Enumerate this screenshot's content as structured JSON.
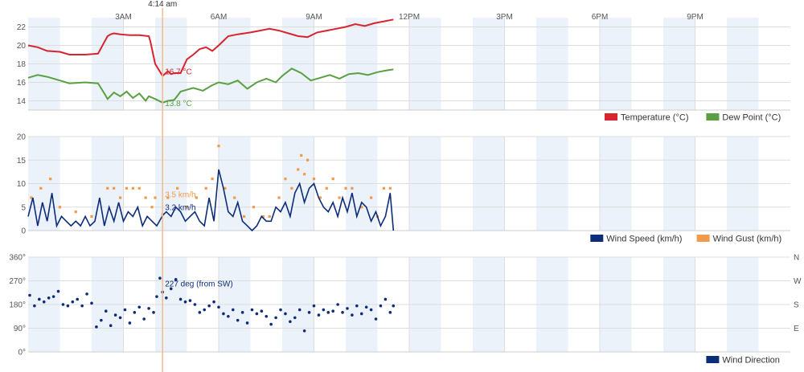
{
  "colors": {
    "temperature": "#d7242f",
    "dew_point": "#5aa042",
    "wind_speed": "#0d2d7a",
    "wind_gust": "#f29a4c",
    "wind_direction": "#0d2d7a",
    "crosshair": "#f5b98a",
    "band": "#ebf2fa",
    "grid": "#dddddd"
  },
  "crosshair": {
    "time_label": "4:14 am",
    "hour": 4.233,
    "temperature_label": "16.7 °C",
    "dew_point_label": "13.8 °C",
    "wind_gust_label": "3.5 km/h",
    "wind_speed_label": "3.2 km/h",
    "wind_direction_label": "227 deg (from SW)"
  },
  "chart_data": [
    {
      "type": "line",
      "x_axis": {
        "min": 0,
        "max": 24,
        "unit": "hours",
        "tick_values": [
          3,
          6,
          9,
          12,
          15,
          18,
          21
        ],
        "tick_labels": [
          "3AM",
          "6AM",
          "9AM",
          "12PM",
          "3PM",
          "6PM",
          "9PM"
        ]
      },
      "ylim": [
        13,
        23
      ],
      "y_ticks": [
        14,
        16,
        18,
        20,
        22
      ],
      "legend": {
        "placement": "bottom-right"
      },
      "series": [
        {
          "name": "Temperature (°C)",
          "x": [
            0,
            0.3,
            0.6,
            1.0,
            1.3,
            1.8,
            2.2,
            2.5,
            2.6,
            2.7,
            2.9,
            3.2,
            3.5,
            3.8,
            3.85,
            4.0,
            4.233,
            4.4,
            4.5,
            4.6,
            4.8,
            5.0,
            5.2,
            5.4,
            5.6,
            5.8,
            6.0,
            6.3,
            6.6,
            7.0,
            7.3,
            7.6,
            7.9,
            8.2,
            8.5,
            8.8,
            9.1,
            9.4,
            9.7,
            10.0,
            10.3,
            10.6,
            10.9,
            11.2,
            11.5
          ],
          "values": [
            20.0,
            19.8,
            19.4,
            19.3,
            19.0,
            19.0,
            19.1,
            21.0,
            21.2,
            21.3,
            21.2,
            21.1,
            21.1,
            21.0,
            20.4,
            18.0,
            16.7,
            17.2,
            16.9,
            17.0,
            17.0,
            18.5,
            19.0,
            19.6,
            19.8,
            19.4,
            20.0,
            21.0,
            21.2,
            21.4,
            21.6,
            21.8,
            21.6,
            21.3,
            21.0,
            20.9,
            21.4,
            21.6,
            21.8,
            22.0,
            22.3,
            22.1,
            22.4,
            22.6,
            22.8
          ]
        },
        {
          "name": "Dew Point (°C)",
          "x": [
            0,
            0.3,
            0.6,
            1.0,
            1.3,
            1.8,
            2.2,
            2.4,
            2.5,
            2.7,
            2.9,
            3.1,
            3.3,
            3.5,
            3.7,
            3.8,
            4.0,
            4.233,
            4.4,
            4.6,
            4.8,
            5.0,
            5.2,
            5.5,
            5.8,
            6.0,
            6.3,
            6.6,
            6.9,
            7.2,
            7.5,
            7.8,
            8.0,
            8.3,
            8.6,
            8.9,
            9.2,
            9.5,
            9.8,
            10.1,
            10.4,
            10.7,
            11.0,
            11.3,
            11.5
          ],
          "values": [
            16.5,
            16.8,
            16.6,
            16.2,
            15.9,
            16.0,
            15.9,
            14.8,
            14.2,
            14.9,
            14.5,
            15.0,
            14.3,
            14.8,
            14.0,
            14.5,
            14.2,
            13.8,
            14.0,
            14.1,
            15.0,
            15.2,
            15.4,
            15.1,
            15.7,
            16.0,
            15.8,
            16.2,
            15.3,
            16.0,
            16.4,
            16.0,
            16.7,
            17.5,
            17.0,
            16.2,
            16.5,
            16.8,
            16.4,
            16.9,
            17.0,
            16.8,
            17.1,
            17.3,
            17.4
          ]
        }
      ]
    },
    {
      "type": "line",
      "x_axis": {
        "min": 0,
        "max": 24,
        "unit": "hours"
      },
      "ylim": [
        0,
        20
      ],
      "y_ticks": [
        0,
        5,
        10,
        15,
        20
      ],
      "legend": {
        "placement": "bottom-right"
      },
      "series": [
        {
          "name": "Wind Speed (km/h)",
          "type": "line",
          "x": [
            0,
            0.15,
            0.3,
            0.45,
            0.6,
            0.75,
            0.9,
            1.05,
            1.2,
            1.35,
            1.5,
            1.65,
            1.8,
            1.95,
            2.1,
            2.25,
            2.4,
            2.55,
            2.7,
            2.85,
            3.0,
            3.15,
            3.3,
            3.45,
            3.6,
            3.75,
            3.9,
            4.05,
            4.233,
            4.35,
            4.5,
            4.65,
            4.8,
            4.95,
            5.1,
            5.25,
            5.4,
            5.55,
            5.7,
            5.85,
            6.0,
            6.15,
            6.3,
            6.45,
            6.6,
            6.75,
            6.9,
            7.05,
            7.2,
            7.35,
            7.5,
            7.65,
            7.8,
            7.95,
            8.1,
            8.25,
            8.4,
            8.55,
            8.7,
            8.85,
            9.0,
            9.15,
            9.3,
            9.45,
            9.6,
            9.75,
            9.9,
            10.05,
            10.2,
            10.35,
            10.5,
            10.65,
            10.8,
            10.95,
            11.1,
            11.25,
            11.4,
            11.5
          ],
          "values": [
            3,
            7,
            1,
            6,
            2,
            8,
            1,
            3,
            2,
            1,
            2,
            1,
            3,
            1,
            2,
            7,
            1,
            5,
            2,
            6,
            2,
            4,
            3,
            5,
            1,
            3,
            2,
            1,
            3.2,
            4,
            3,
            5,
            4,
            2,
            3,
            4,
            2,
            1,
            7,
            2,
            13,
            9,
            4,
            3,
            6,
            2,
            1,
            0,
            1,
            3,
            2,
            2,
            5,
            4,
            6,
            3,
            8,
            10,
            6,
            9,
            10,
            7,
            5,
            4,
            6,
            3,
            7,
            4,
            8,
            3,
            6,
            5,
            2,
            4,
            1,
            3,
            8,
            0
          ]
        },
        {
          "name": "Wind Gust (km/h)",
          "type": "scatter",
          "x": [
            0.1,
            0.4,
            0.7,
            1.0,
            1.5,
            2.0,
            2.5,
            2.7,
            2.9,
            3.1,
            3.3,
            3.5,
            3.7,
            3.9,
            4.0,
            4.233,
            4.4,
            4.7,
            5.0,
            5.3,
            5.6,
            5.8,
            6.0,
            6.2,
            6.5,
            6.8,
            7.1,
            7.4,
            7.6,
            7.9,
            8.1,
            8.3,
            8.5,
            8.6,
            8.7,
            8.8,
            9.0,
            9.2,
            9.4,
            9.6,
            9.8,
            10.0,
            10.2,
            10.5,
            10.8,
            11.0,
            11.2,
            11.4
          ],
          "values": [
            7,
            9,
            11,
            5,
            4,
            3,
            9,
            9,
            7,
            9,
            9,
            9,
            7,
            5,
            7,
            3.5,
            7,
            9,
            5,
            7,
            9,
            11,
            18,
            9,
            7,
            3,
            5,
            3,
            3,
            7,
            11,
            9,
            13,
            16,
            12,
            15,
            11,
            7,
            9,
            11,
            7,
            9,
            9,
            5,
            7,
            3,
            9,
            9
          ]
        }
      ]
    },
    {
      "type": "scatter",
      "x_axis": {
        "min": 0,
        "max": 24,
        "unit": "hours"
      },
      "ylim": [
        0,
        360
      ],
      "y_ticks": [
        0,
        90,
        180,
        270,
        360
      ],
      "y_tick_labels": [
        "0°",
        "90°",
        "180°",
        "270°",
        "360°"
      ],
      "right_axis_labels": [
        "E",
        "S",
        "W",
        "N"
      ],
      "right_axis_values": [
        90,
        180,
        270,
        360
      ],
      "legend": {
        "placement": "bottom-right"
      },
      "series": [
        {
          "name": "Wind Direction",
          "x": [
            0.05,
            0.2,
            0.35,
            0.5,
            0.65,
            0.8,
            0.95,
            1.1,
            1.25,
            1.4,
            1.55,
            1.7,
            1.85,
            2.0,
            2.15,
            2.3,
            2.45,
            2.6,
            2.75,
            2.9,
            3.05,
            3.2,
            3.35,
            3.5,
            3.65,
            3.8,
            3.95,
            4.05,
            4.15,
            4.233,
            4.35,
            4.5,
            4.65,
            4.8,
            4.95,
            5.1,
            5.25,
            5.4,
            5.55,
            5.7,
            5.85,
            6.0,
            6.15,
            6.3,
            6.45,
            6.6,
            6.75,
            6.9,
            7.05,
            7.2,
            7.35,
            7.5,
            7.65,
            7.8,
            7.95,
            8.1,
            8.25,
            8.4,
            8.55,
            8.7,
            8.85,
            9.0,
            9.15,
            9.3,
            9.45,
            9.6,
            9.75,
            9.9,
            10.05,
            10.2,
            10.35,
            10.5,
            10.65,
            10.8,
            10.95,
            11.1,
            11.25,
            11.4,
            11.5
          ],
          "values": [
            215,
            175,
            200,
            190,
            205,
            210,
            230,
            180,
            175,
            190,
            200,
            175,
            220,
            185,
            95,
            120,
            155,
            100,
            140,
            130,
            160,
            110,
            150,
            170,
            125,
            165,
            150,
            210,
            280,
            227,
            205,
            240,
            275,
            200,
            190,
            195,
            180,
            150,
            160,
            175,
            190,
            170,
            145,
            135,
            160,
            120,
            150,
            110,
            160,
            145,
            155,
            135,
            105,
            130,
            160,
            145,
            115,
            130,
            160,
            80,
            150,
            175,
            140,
            160,
            150,
            155,
            180,
            150,
            165,
            140,
            175,
            145,
            170,
            160,
            125,
            175,
            200,
            150,
            175
          ]
        }
      ]
    }
  ]
}
